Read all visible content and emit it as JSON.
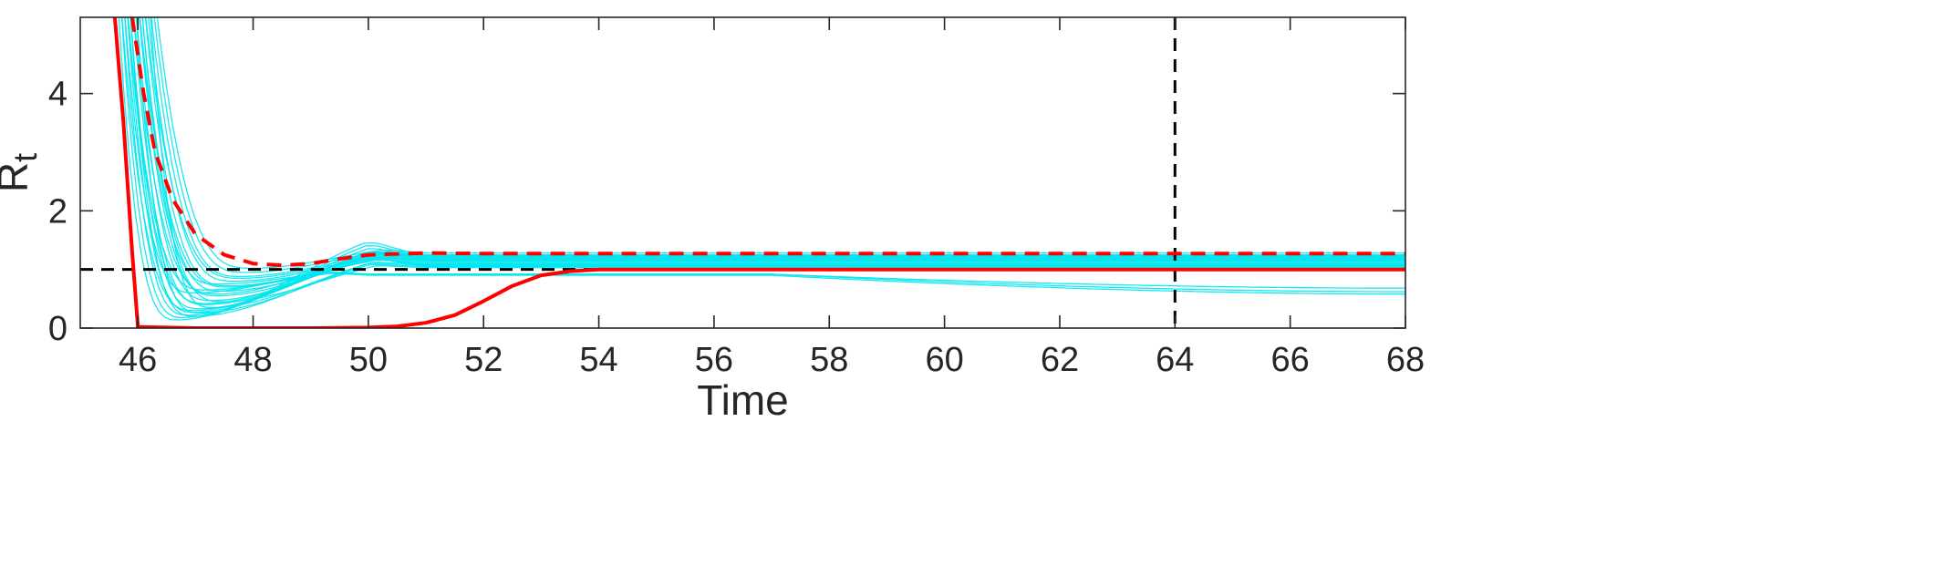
{
  "chart_data": {
    "type": "line",
    "xlabel": "Time",
    "ylabel": "R",
    "ylabel_subscript": "t",
    "xlim": [
      45,
      68
    ],
    "ylim": [
      0,
      5.3
    ],
    "xticks": [
      46,
      48,
      50,
      52,
      54,
      56,
      58,
      60,
      62,
      64,
      66,
      68
    ],
    "yticks": [
      0,
      2,
      4
    ],
    "xtick_labels": [
      "46",
      "48",
      "50",
      "52",
      "54",
      "56",
      "58",
      "60",
      "62",
      "64",
      "66",
      "68"
    ],
    "ytick_labels": [
      "0",
      "2",
      "4"
    ],
    "grid": false,
    "colors": {
      "ensemble": "#00e5ee",
      "red": "#ff0000",
      "reference": "#000000",
      "axis": "#262626"
    },
    "reference_lines": [
      {
        "orientation": "horizontal",
        "value": 1,
        "style": "dashed"
      },
      {
        "orientation": "vertical",
        "value": 64,
        "style": "dashed"
      }
    ],
    "series": [
      {
        "style": "solid",
        "color": "red",
        "points": [
          [
            45.6,
            5.3
          ],
          [
            45.75,
            3.5
          ],
          [
            45.9,
            1.3
          ],
          [
            46.0,
            0.02
          ],
          [
            47.0,
            0.0
          ],
          [
            48.0,
            0.0
          ],
          [
            49.0,
            0.0
          ],
          [
            50.0,
            0.01
          ],
          [
            50.5,
            0.03
          ],
          [
            51.0,
            0.09
          ],
          [
            51.5,
            0.22
          ],
          [
            52.0,
            0.46
          ],
          [
            52.5,
            0.72
          ],
          [
            53.0,
            0.9
          ],
          [
            53.5,
            0.97
          ],
          [
            54.0,
            1.0
          ],
          [
            68.0,
            1.0
          ]
        ]
      },
      {
        "style": "dashed",
        "color": "red",
        "points": [
          [
            45.9,
            5.3
          ],
          [
            46.1,
            4.0
          ],
          [
            46.3,
            3.0
          ],
          [
            46.6,
            2.2
          ],
          [
            47.0,
            1.6
          ],
          [
            47.5,
            1.25
          ],
          [
            48.0,
            1.1
          ],
          [
            48.5,
            1.07
          ],
          [
            49.0,
            1.1
          ],
          [
            49.5,
            1.18
          ],
          [
            50.0,
            1.25
          ],
          [
            51.0,
            1.28
          ],
          [
            52.0,
            1.27
          ],
          [
            54.0,
            1.27
          ],
          [
            68.0,
            1.27
          ]
        ]
      }
    ],
    "ensemble": {
      "color": "ensemble",
      "members": [
        {
          "start": 45.65,
          "low": 0.14,
          "low_t": 46.7,
          "peak": 1.45,
          "end_t": 51.0,
          "final": 1.22
        },
        {
          "start": 45.7,
          "low": 0.18,
          "low_t": 46.8,
          "peak": 1.4,
          "end_t": 51.0,
          "final": 1.2
        },
        {
          "start": 45.75,
          "low": 0.22,
          "low_t": 46.9,
          "peak": 1.35,
          "end_t": 51.0,
          "final": 1.18
        },
        {
          "start": 45.8,
          "low": 0.27,
          "low_t": 47.0,
          "peak": 1.3,
          "end_t": 51.0,
          "final": 1.16
        },
        {
          "start": 45.85,
          "low": 0.33,
          "low_t": 47.1,
          "peak": 1.25,
          "end_t": 51.0,
          "final": 1.14
        },
        {
          "start": 45.9,
          "low": 0.4,
          "low_t": 47.2,
          "peak": 1.22,
          "end_t": 51.0,
          "final": 1.12
        },
        {
          "start": 45.95,
          "low": 0.47,
          "low_t": 47.3,
          "peak": 1.2,
          "end_t": 51.0,
          "final": 1.1
        },
        {
          "start": 46.0,
          "low": 0.55,
          "low_t": 47.4,
          "peak": 1.18,
          "end_t": 51.0,
          "final": 1.08
        },
        {
          "start": 46.05,
          "low": 0.63,
          "low_t": 47.5,
          "peak": 1.17,
          "end_t": 51.0,
          "final": 1.06
        },
        {
          "start": 46.1,
          "low": 0.72,
          "low_t": 47.6,
          "peak": 1.16,
          "end_t": 51.0,
          "final": 1.05
        },
        {
          "start": 46.15,
          "low": 0.8,
          "low_t": 47.7,
          "peak": 1.2,
          "end_t": 51.0,
          "final": 1.15
        },
        {
          "start": 46.2,
          "low": 0.88,
          "low_t": 47.8,
          "peak": 1.25,
          "end_t": 51.0,
          "final": 1.2
        },
        {
          "start": 46.25,
          "low": 0.95,
          "low_t": 47.9,
          "peak": 1.3,
          "end_t": 51.0,
          "final": 1.25
        },
        {
          "start": 46.3,
          "low": 1.02,
          "low_t": 48.0,
          "peak": 1.33,
          "end_t": 51.0,
          "final": 1.28
        },
        {
          "start": 45.7,
          "low": 0.3,
          "low_t": 47.0,
          "peak": 1.28,
          "end_t": 51.0,
          "final": 1.24
        },
        {
          "start": 45.8,
          "low": 0.42,
          "low_t": 47.2,
          "peak": 1.27,
          "end_t": 51.0,
          "final": 1.23
        },
        {
          "start": 45.9,
          "low": 0.58,
          "low_t": 47.4,
          "peak": 1.26,
          "end_t": 51.0,
          "final": 1.21
        },
        {
          "start": 46.0,
          "low": 0.7,
          "low_t": 47.6,
          "peak": 1.24,
          "end_t": 51.0,
          "final": 1.19
        },
        {
          "start": 46.1,
          "low": 0.85,
          "low_t": 47.8,
          "peak": 1.22,
          "end_t": 51.0,
          "final": 1.17
        },
        {
          "start": 46.2,
          "low": 0.35,
          "low_t": 47.3,
          "peak": 1.12,
          "end_t": 51.0,
          "final": 1.09
        },
        {
          "start": 45.85,
          "low": 0.2,
          "low_t": 47.0,
          "peak": 1.1,
          "end_t": 51.0,
          "final": 1.07
        },
        {
          "start": 45.95,
          "low": 0.26,
          "low_t": 47.1,
          "peak": 1.08,
          "end_t": 51.0,
          "final": 1.05
        },
        {
          "start": 46.05,
          "low": 0.45,
          "low_t": 47.5,
          "peak": 1.06,
          "end_t": 51.0,
          "final": 1.03
        },
        {
          "start": 45.75,
          "low": 0.6,
          "low_t": 47.0,
          "peak": 0.95,
          "end_t": 50.0,
          "final": 0.92,
          "tail": 0.62
        },
        {
          "start": 45.8,
          "low": 0.65,
          "low_t": 47.2,
          "peak": 0.93,
          "end_t": 50.0,
          "final": 0.9,
          "tail": 0.58
        },
        {
          "start": 46.0,
          "low": 0.75,
          "low_t": 47.4,
          "peak": 0.95,
          "end_t": 50.0,
          "final": 0.92,
          "tail": 0.68
        }
      ]
    }
  }
}
